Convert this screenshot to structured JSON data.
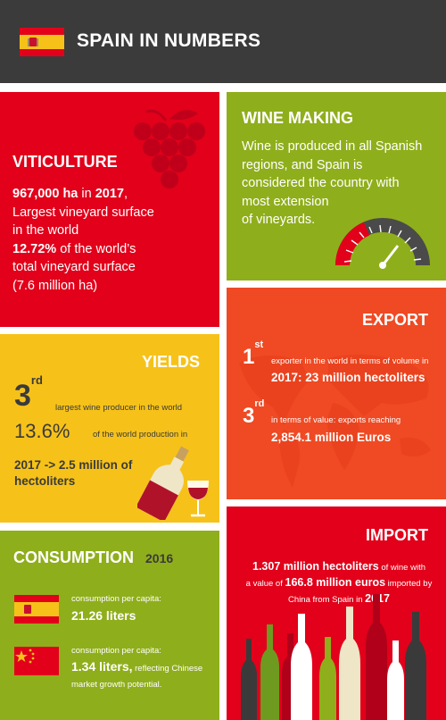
{
  "header": {
    "title": "SPAIN IN NUMBERS"
  },
  "colors": {
    "header_bg": "#3b3b3b",
    "red": "#e2001a",
    "green": "#8fae1b",
    "yellow": "#f6c21a",
    "orange": "#ef4a23"
  },
  "viticulture": {
    "heading": "VITICULTURE",
    "area": "967,000 ha",
    "in": " in ",
    "year": "2017",
    "comma": ",",
    "line2": "Largest vineyard surface",
    "line3": "in the world",
    "percent": "12.72%",
    "line4_rest": " of the world’s",
    "line5": "total vineyard surface",
    "line6": "(7.6 million ha)"
  },
  "wine_making": {
    "heading": "WINE MAKING",
    "line1": "Wine is produced in all Spanish",
    "line2": "regions, and Spain is",
    "line3": "considered the country with",
    "line4": "most extension",
    "line5": "of vineyards."
  },
  "yields": {
    "heading": "YIELDS",
    "rank_num": "3",
    "rank_sup": "rd",
    "rank_text": "largest wine producer in the world",
    "share": "13.6%",
    "share_text": "of the world production in",
    "prod_line1": "2017 -> 2.5 million of",
    "prod_line2": "hectoliters"
  },
  "export": {
    "heading": "EXPORT",
    "r1_num": "1",
    "r1_sup": "st",
    "r1_small": "exporter in the world in terms of volume in",
    "r1_big": "2017: 23 million hectoliters",
    "r2_num": "3",
    "r2_sup": "rd",
    "r2_small": "in terms of value: exports reaching",
    "r2_big": "2,854.1 million Euros"
  },
  "consumption": {
    "heading": "CONSUMPTION",
    "year": "2016",
    "spain_label": "consumption per capita:",
    "spain_value": "21.26 liters",
    "china_label": "consumption per capita:",
    "china_value": "1.34 liters,",
    "china_rest": " reflecting Chinese",
    "china_line3": "market growth potential."
  },
  "import": {
    "heading": "IMPORT",
    "volume": "1.307 million hectoliters",
    "volume_rest": " of wine with",
    "value_pre": "a value of ",
    "value": "166.8 million euros",
    "value_rest": " imported by",
    "line3": "China from Spain in ",
    "year": "2017"
  }
}
